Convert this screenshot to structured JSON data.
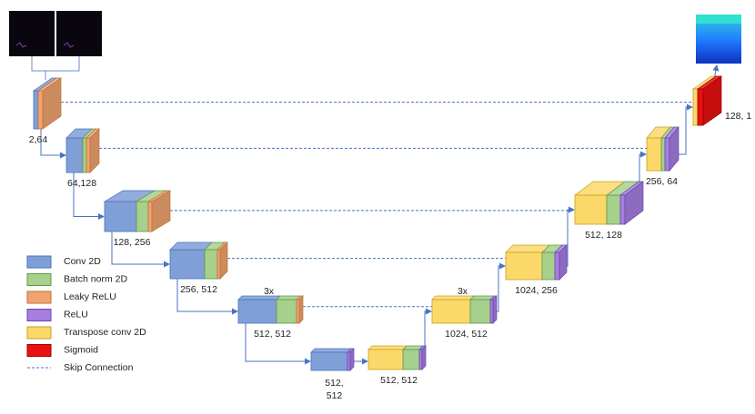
{
  "blocks": [
    {
      "label": "2,64"
    },
    {
      "label": "64,128"
    },
    {
      "label": "128, 256"
    },
    {
      "label": "256, 512"
    },
    {
      "label": "512, 512",
      "repeat": "3x"
    },
    {
      "label": [
        "512,",
        "512"
      ]
    },
    {
      "label": "512, 512"
    },
    {
      "label": "1024, 512",
      "repeat": "3x"
    },
    {
      "label": "1024, 256"
    },
    {
      "label": "512, 128"
    },
    {
      "label": "256, 64"
    },
    {
      "label": "128, 1"
    }
  ],
  "legend": [
    {
      "label": "Conv 2D"
    },
    {
      "label": "Batch norm 2D"
    },
    {
      "label": "Leaky ReLU"
    },
    {
      "label": "ReLU"
    },
    {
      "label": "Transpose conv 2D"
    },
    {
      "label": "Sigmoid"
    },
    {
      "label": "Skip Connection"
    }
  ]
}
